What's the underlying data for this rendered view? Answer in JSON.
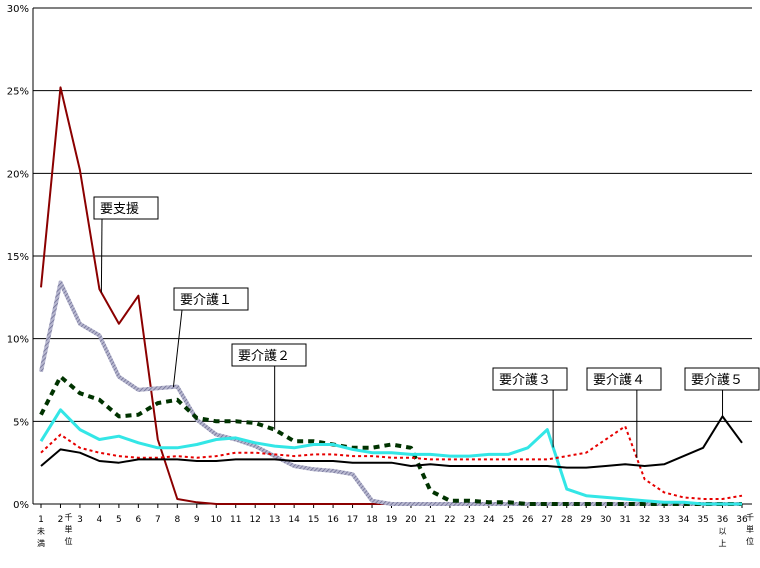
{
  "chart_data": {
    "type": "line",
    "ylim": [
      0,
      30
    ],
    "yticks": [
      "0%",
      "5%",
      "10%",
      "15%",
      "20%",
      "25%",
      "30%"
    ],
    "x": [
      1,
      2,
      3,
      4,
      5,
      6,
      7,
      8,
      9,
      10,
      11,
      12,
      13,
      14,
      15,
      16,
      17,
      18,
      19,
      20,
      21,
      22,
      23,
      24,
      25,
      26,
      27,
      28,
      29,
      30,
      31,
      32,
      33,
      34,
      35,
      36,
      37
    ],
    "x_tick_labels": [
      "1",
      "2",
      "3",
      "4",
      "5",
      "6",
      "7",
      "8",
      "9",
      "10",
      "11",
      "12",
      "13",
      "14",
      "15",
      "16",
      "17",
      "18",
      "19",
      "20",
      "21",
      "22",
      "23",
      "24",
      "25",
      "26",
      "27",
      "28",
      "29",
      "30",
      "31",
      "32",
      "33",
      "34",
      "35",
      "36",
      "36"
    ],
    "x_tick_sublabels": [
      {
        "index": 0,
        "lines": [
          "未",
          "満"
        ]
      },
      {
        "index": 1,
        "lines": [
          "千",
          "単",
          "位"
        ]
      },
      {
        "index": 35,
        "lines": [
          "以",
          "上"
        ]
      },
      {
        "index": 36,
        "lines": [
          "千",
          "単",
          "位"
        ]
      }
    ],
    "grid": true,
    "series": [
      {
        "name": "要支援",
        "color": "#8b0000",
        "style": "solid",
        "width": 2,
        "values": [
          13.1,
          25.2,
          20.2,
          13.0,
          10.9,
          12.6,
          3.9,
          0.3,
          0.1,
          0,
          0,
          0,
          0,
          0,
          0,
          0,
          0,
          0,
          0,
          0,
          0,
          0,
          0,
          0,
          0,
          0,
          0,
          0,
          0,
          0,
          0,
          0,
          0,
          0,
          0,
          0,
          0
        ]
      },
      {
        "name": "要介護１",
        "color": "#8080a8",
        "style": "hatched",
        "width": 4,
        "values": [
          8.0,
          13.4,
          10.9,
          10.2,
          7.7,
          6.9,
          7.0,
          7.1,
          5.1,
          4.2,
          3.9,
          3.5,
          2.9,
          2.3,
          2.1,
          2.0,
          1.8,
          0.2,
          0,
          0,
          0,
          0,
          0,
          0,
          0,
          0,
          0,
          0,
          0,
          0,
          0,
          0,
          0,
          0,
          0,
          0,
          0
        ]
      },
      {
        "name": "要介護２",
        "color": "#003300",
        "style": "dashed",
        "width": 4,
        "values": [
          5.4,
          7.7,
          6.7,
          6.3,
          5.3,
          5.4,
          6.1,
          6.3,
          5.2,
          5.0,
          5.0,
          4.9,
          4.5,
          3.8,
          3.8,
          3.6,
          3.4,
          3.4,
          3.6,
          3.4,
          0.8,
          0.2,
          0.2,
          0.1,
          0.1,
          0,
          0,
          0,
          0,
          0,
          0,
          0,
          0,
          0,
          0,
          0,
          0
        ]
      },
      {
        "name": "要介護３",
        "color": "#33e6e6",
        "style": "solid",
        "width": 3,
        "values": [
          3.8,
          5.7,
          4.5,
          3.9,
          4.1,
          3.7,
          3.4,
          3.4,
          3.6,
          3.9,
          4.0,
          3.7,
          3.5,
          3.4,
          3.6,
          3.6,
          3.3,
          3.1,
          3.1,
          3.0,
          3.0,
          2.9,
          2.9,
          3.0,
          3.0,
          3.4,
          4.5,
          0.9,
          0.5,
          0.4,
          0.3,
          0.2,
          0.1,
          0.1,
          0,
          0,
          0
        ]
      },
      {
        "name": "要介護４",
        "color": "#e60000",
        "style": "dotted",
        "width": 2,
        "values": [
          3.1,
          4.2,
          3.4,
          3.1,
          2.9,
          2.8,
          2.8,
          2.9,
          2.8,
          2.9,
          3.1,
          3.1,
          3.0,
          2.9,
          3.0,
          3.0,
          2.9,
          2.9,
          2.8,
          2.8,
          2.7,
          2.7,
          2.7,
          2.7,
          2.7,
          2.7,
          2.7,
          2.9,
          3.1,
          3.9,
          4.7,
          1.5,
          0.7,
          0.4,
          0.3,
          0.3,
          0.5
        ]
      },
      {
        "name": "要介護５",
        "color": "#000000",
        "style": "solid",
        "width": 2,
        "values": [
          2.3,
          3.3,
          3.1,
          2.6,
          2.5,
          2.7,
          2.7,
          2.7,
          2.6,
          2.6,
          2.7,
          2.7,
          2.7,
          2.6,
          2.6,
          2.6,
          2.5,
          2.5,
          2.5,
          2.3,
          2.4,
          2.3,
          2.3,
          2.3,
          2.3,
          2.3,
          2.3,
          2.2,
          2.2,
          2.3,
          2.4,
          2.3,
          2.4,
          2.9,
          3.4,
          5.3,
          3.7
        ]
      }
    ],
    "callouts": [
      {
        "label": "要支援",
        "series": 0
      },
      {
        "label": "要介護１",
        "series": 1
      },
      {
        "label": "要介護２",
        "series": 2
      },
      {
        "label": "要介護３",
        "series": 3
      },
      {
        "label": "要介護４",
        "series": 4
      },
      {
        "label": "要介護５",
        "series": 5
      }
    ]
  }
}
